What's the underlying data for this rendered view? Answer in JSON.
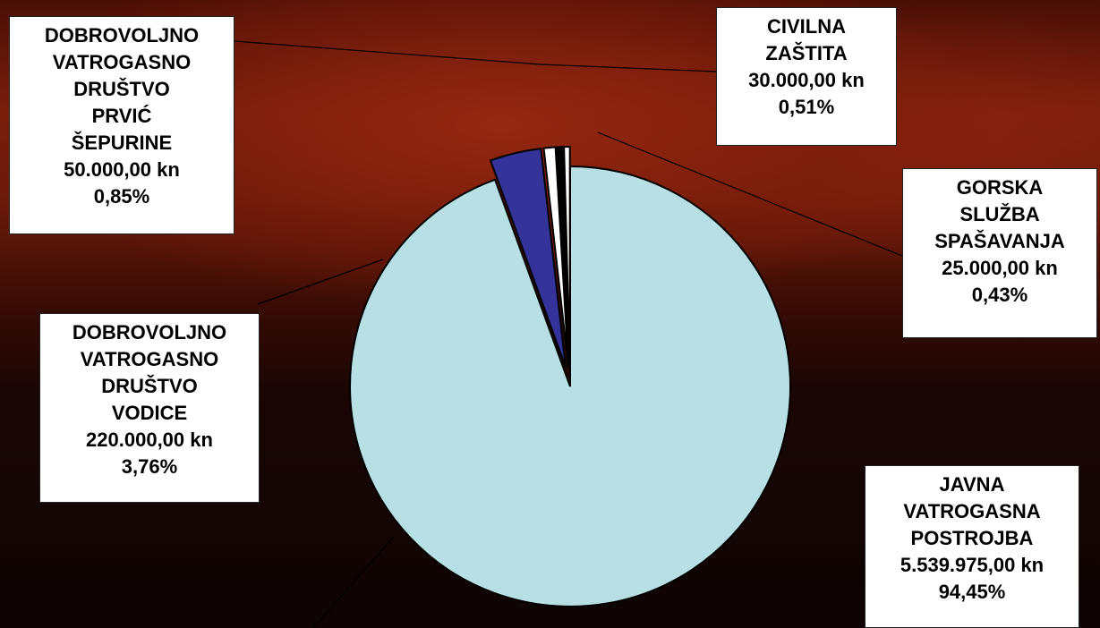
{
  "chart_data": {
    "type": "pie",
    "slices": [
      {
        "name": "JAVNA VATROGASNA POSTROJBA",
        "value_text": "5.539.975,00 kn",
        "percent_text": "94,45%",
        "value": 5539975,
        "percent": 94.45,
        "color": "#b8dfe3"
      },
      {
        "name": "DOBROVOLJNO VATROGASNO DRUŠTVO VODICE",
        "value_text": "220.000,00 kn",
        "percent_text": "3,76%",
        "value": 220000,
        "percent": 3.76,
        "color": "#33339a"
      },
      {
        "name": "DOBROVOLJNO VATROGASNO DRUŠTVO PRVIĆ ŠEPURINE",
        "value_text": "50.000,00 kn",
        "percent_text": "0,85%",
        "value": 50000,
        "percent": 0.85,
        "color": "#ffffff"
      },
      {
        "name": "CIVILNA ZAŠTITA",
        "value_text": "30.000,00 kn",
        "percent_text": "0,51%",
        "value": 30000,
        "percent": 0.51,
        "color": "#000000"
      },
      {
        "name": "GORSKA SLUŽBA SPAŠAVANJA",
        "value_text": "25.000,00 kn",
        "percent_text": "0,43%",
        "value": 25000,
        "percent": 0.43,
        "color": "#ffffff"
      }
    ]
  },
  "labels": {
    "dvd_prvic": [
      "DOBROVOLJNO",
      "VATROGASNO",
      "DRUŠTVO",
      "PRVIĆ",
      "ŠEPURINE",
      "50.000,00 kn",
      "0,85%"
    ],
    "civilna": [
      "CIVILNA",
      "ZAŠTITA",
      "30.000,00 kn",
      "0,51%"
    ],
    "gorska": [
      "GORSKA",
      "SLUŽBA",
      "SPAŠAVANJA",
      "25.000,00 kn",
      "0,43%"
    ],
    "dvd_vodice": [
      "DOBROVOLJNO",
      "VATROGASNO",
      "DRUŠTVO",
      "VODICE",
      "220.000,00 kn",
      "3,76%"
    ],
    "javna": [
      "JAVNA",
      "VATROGASNA",
      "POSTROJBA",
      "5.539.975,00 kn",
      "94,45%"
    ]
  }
}
